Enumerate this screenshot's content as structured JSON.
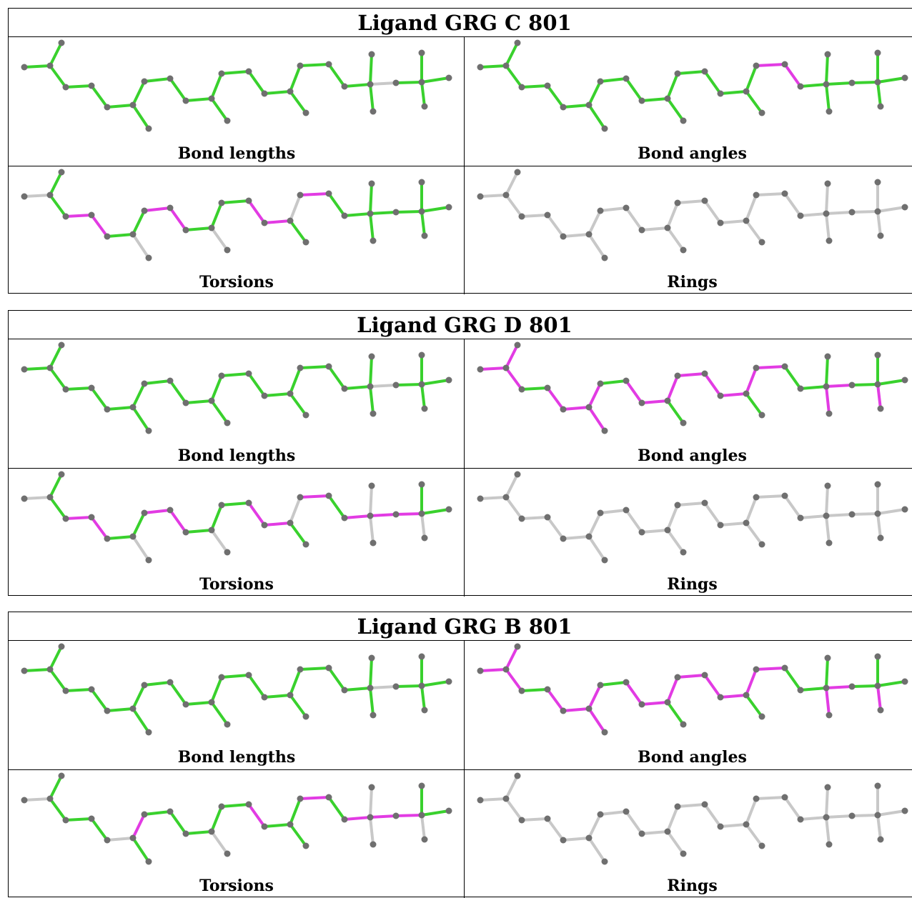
{
  "blocks": [
    {
      "title": "Ligand GRG C 801",
      "panels": [
        {
          "caption": "Bond lengths",
          "colors": "lengths_C"
        },
        {
          "caption": "Bond angles",
          "colors": "angles_C"
        },
        {
          "caption": "Torsions",
          "colors": "torsions_C"
        },
        {
          "caption": "Rings",
          "colors": "rings"
        }
      ]
    },
    {
      "title": "Ligand GRG D 801",
      "panels": [
        {
          "caption": "Bond lengths",
          "colors": "lengths_C"
        },
        {
          "caption": "Bond angles",
          "colors": "angles_D"
        },
        {
          "caption": "Torsions",
          "colors": "torsions_D"
        },
        {
          "caption": "Rings",
          "colors": "rings"
        }
      ]
    },
    {
      "title": "Ligand GRG B 801",
      "panels": [
        {
          "caption": "Bond lengths",
          "colors": "lengths_C"
        },
        {
          "caption": "Bond angles",
          "colors": "angles_D"
        },
        {
          "caption": "Torsions",
          "colors": "torsions_B"
        },
        {
          "caption": "Rings",
          "colors": "rings"
        }
      ]
    }
  ],
  "colors": {
    "green": "#39d12d",
    "magenta": "#e23be3",
    "grey": "#c8c8c8",
    "atom": "#6f6f6f"
  }
}
